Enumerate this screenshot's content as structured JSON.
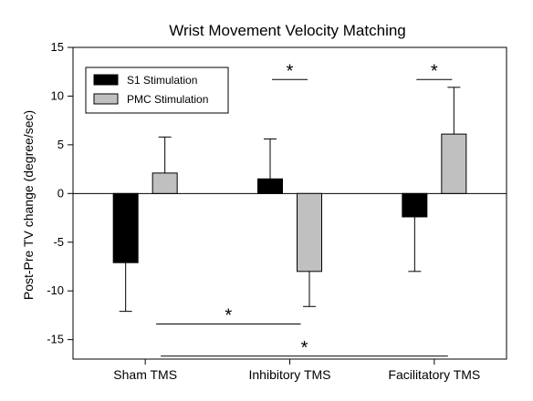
{
  "chart_data": {
    "type": "bar",
    "title": "Wrist Movement Velocity Matching",
    "xlabel": "",
    "ylabel": "Post-Pre TV change (degree/sec)",
    "ylim": [
      -17,
      15
    ],
    "yticks": [
      -15,
      -10,
      -5,
      0,
      5,
      10,
      15
    ],
    "categories": [
      "Sham TMS",
      "Inhibitory TMS",
      "Facilitatory TMS"
    ],
    "series": [
      {
        "name": "S1 Stimulation",
        "color": "#000000",
        "values": [
          -7.1,
          1.5,
          -2.4
        ],
        "error_plus": [
          0,
          4.1,
          0
        ],
        "error_minus": [
          5.0,
          0,
          5.6
        ]
      },
      {
        "name": "PMC Stimulation",
        "color": "#c0c0c0",
        "values": [
          2.1,
          -8.0,
          6.1
        ],
        "error_plus": [
          3.7,
          0,
          4.8
        ],
        "error_minus": [
          0,
          3.6,
          0
        ]
      }
    ],
    "legend_position": "top-left",
    "grid": false,
    "annotations": {
      "star_label": "*",
      "significance_brackets": [
        {
          "between": "S1 Stimulation vs PMC Stimulation",
          "category": "Inhibitory TMS"
        },
        {
          "between": "S1 Stimulation vs PMC Stimulation",
          "category": "Facilitatory TMS"
        },
        {
          "between": "Sham TMS vs Inhibitory TMS"
        },
        {
          "between": "Sham TMS vs Facilitatory TMS"
        }
      ]
    }
  }
}
